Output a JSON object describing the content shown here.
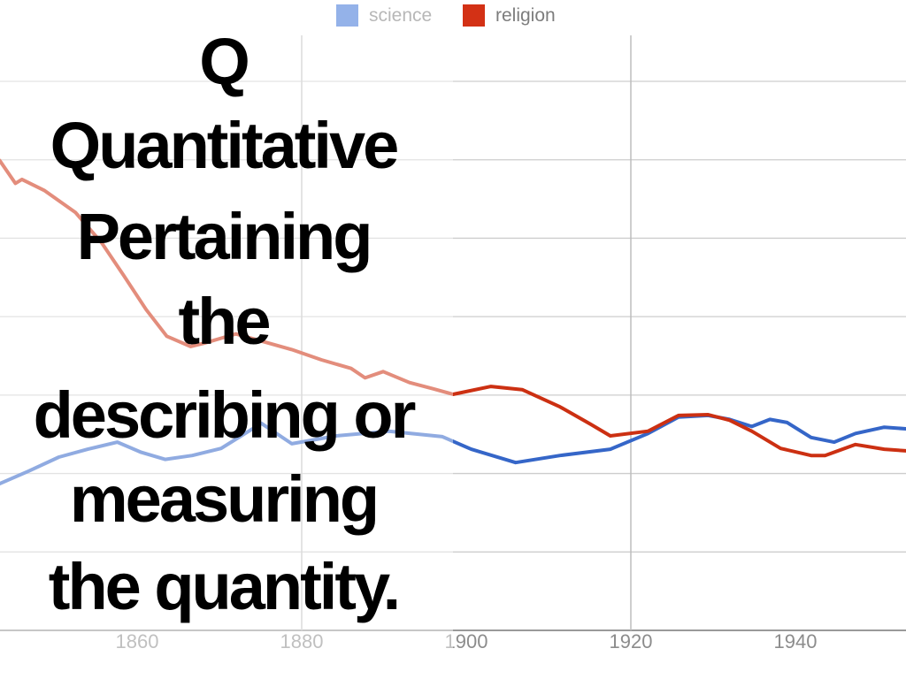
{
  "slide": {
    "headline_lines": [
      "Q",
      "Quantitative",
      "Pertaining",
      "the",
      "describing or",
      "measuring",
      "the quantity."
    ],
    "text_color": "#000000"
  },
  "colors": {
    "background": "#ffffff",
    "science_line": "#3566c8",
    "religion_line": "#cc3012",
    "gridline": "#cdcdcd",
    "axis_line": "#9a9a9a",
    "tick_label": "#8c8c8c",
    "legend_text": "#7d7d7d",
    "left_half_fade": "rgba(255,255,255,0.45)"
  },
  "chart_data": {
    "type": "line",
    "title": "",
    "legend": {
      "position": "top-center",
      "entries": [
        {
          "label": "science",
          "color": "#3d74d8"
        },
        {
          "label": "religion",
          "color": "#d33115"
        }
      ]
    },
    "x_axis": {
      "range": [
        1843.3,
        1953.4
      ],
      "tick_labels": [
        "1860",
        "1880",
        "1900",
        "1920",
        "1940"
      ],
      "tick_years": [
        1860,
        1880,
        1900,
        1920,
        1940
      ],
      "vertical_gridline_years": [
        1880,
        1920
      ]
    },
    "y_axis": {
      "range": [
        0,
        8.04
      ],
      "tick_labels_visible": false,
      "gridline_values": [
        0,
        1,
        2,
        3,
        4,
        5,
        6,
        7
      ],
      "unit": "relative word frequency (gridline units, no labels shown)"
    },
    "series": [
      {
        "name": "science",
        "color": "#3566c8",
        "points": [
          [
            1843.3,
            1.87
          ],
          [
            1846.8,
            2.03
          ],
          [
            1850.5,
            2.21
          ],
          [
            1854.0,
            2.31
          ],
          [
            1857.6,
            2.4
          ],
          [
            1860.5,
            2.27
          ],
          [
            1863.4,
            2.18
          ],
          [
            1866.7,
            2.23
          ],
          [
            1870.2,
            2.32
          ],
          [
            1875.1,
            2.64
          ],
          [
            1878.8,
            2.38
          ],
          [
            1884.2,
            2.48
          ],
          [
            1890.6,
            2.54
          ],
          [
            1897.1,
            2.47
          ],
          [
            1898.4,
            2.41
          ],
          [
            1900.6,
            2.31
          ],
          [
            1906.0,
            2.14
          ],
          [
            1911.4,
            2.23
          ],
          [
            1917.5,
            2.31
          ],
          [
            1922.1,
            2.51
          ],
          [
            1925.8,
            2.72
          ],
          [
            1929.4,
            2.74
          ],
          [
            1932.0,
            2.69
          ],
          [
            1934.7,
            2.6
          ],
          [
            1936.9,
            2.69
          ],
          [
            1939.0,
            2.65
          ],
          [
            1941.9,
            2.46
          ],
          [
            1944.7,
            2.4
          ],
          [
            1947.3,
            2.51
          ],
          [
            1950.8,
            2.59
          ],
          [
            1953.4,
            2.57
          ]
        ]
      },
      {
        "name": "religion",
        "color": "#cc3012",
        "points": [
          [
            1843.3,
            5.99
          ],
          [
            1845.2,
            5.7
          ],
          [
            1846.0,
            5.75
          ],
          [
            1848.7,
            5.61
          ],
          [
            1852.5,
            5.33
          ],
          [
            1855.7,
            4.94
          ],
          [
            1858.4,
            4.52
          ],
          [
            1861.1,
            4.09
          ],
          [
            1863.6,
            3.75
          ],
          [
            1866.5,
            3.62
          ],
          [
            1868.1,
            3.66
          ],
          [
            1872.0,
            3.78
          ],
          [
            1878.8,
            3.58
          ],
          [
            1882.4,
            3.45
          ],
          [
            1886.0,
            3.34
          ],
          [
            1887.7,
            3.22
          ],
          [
            1889.9,
            3.3
          ],
          [
            1893.1,
            3.16
          ],
          [
            1896.0,
            3.08
          ],
          [
            1898.4,
            3.01
          ],
          [
            1903.0,
            3.11
          ],
          [
            1906.8,
            3.07
          ],
          [
            1911.4,
            2.85
          ],
          [
            1915.1,
            2.63
          ],
          [
            1917.5,
            2.48
          ],
          [
            1922.1,
            2.54
          ],
          [
            1925.8,
            2.74
          ],
          [
            1929.4,
            2.75
          ],
          [
            1932.0,
            2.68
          ],
          [
            1934.7,
            2.54
          ],
          [
            1938.2,
            2.32
          ],
          [
            1941.9,
            2.23
          ],
          [
            1943.6,
            2.23
          ],
          [
            1947.3,
            2.37
          ],
          [
            1950.8,
            2.31
          ],
          [
            1953.4,
            2.29
          ]
        ]
      }
    ]
  }
}
